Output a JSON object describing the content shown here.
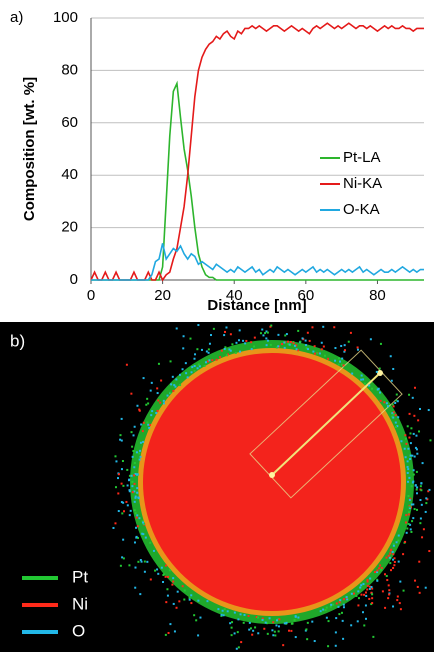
{
  "chart_data": {
    "type": "line",
    "x_label": "Distance [nm]",
    "y_label": "Composition [wt. %]",
    "x": [
      0,
      1,
      2,
      3,
      4,
      5,
      6,
      7,
      8,
      9,
      10,
      11,
      12,
      13,
      14,
      15,
      16,
      17,
      18,
      19,
      20,
      21,
      22,
      23,
      24,
      25,
      26,
      27,
      28,
      29,
      30,
      31,
      32,
      33,
      34,
      35,
      36,
      37,
      38,
      39,
      40,
      41,
      42,
      43,
      44,
      45,
      46,
      47,
      48,
      49,
      50,
      51,
      52,
      53,
      54,
      55,
      56,
      57,
      58,
      59,
      60,
      61,
      62,
      63,
      64,
      65,
      66,
      67,
      68,
      69,
      70,
      71,
      72,
      73,
      74,
      75,
      76,
      77,
      78,
      79,
      80,
      81,
      82,
      83,
      84,
      85,
      86,
      87,
      88,
      89,
      90,
      91,
      92,
      93
    ],
    "series": [
      {
        "name": "Pt-LA",
        "color": "#2db52d",
        "values": [
          0,
          0,
          0,
          0,
          0,
          0,
          0,
          0,
          0,
          0,
          0,
          0,
          0,
          0,
          0,
          0,
          0,
          0,
          0,
          0,
          5,
          30,
          55,
          72,
          75,
          62,
          50,
          42,
          32,
          20,
          10,
          5,
          2,
          1,
          1,
          0,
          0,
          0,
          0,
          0,
          0,
          0,
          0,
          0,
          0,
          0,
          0,
          0,
          0,
          0,
          0,
          0,
          0,
          0,
          0,
          0,
          0,
          0,
          0,
          0,
          0,
          0,
          0,
          0,
          0,
          0,
          0,
          0,
          0,
          0,
          0,
          0,
          0,
          0,
          0,
          0,
          0,
          0,
          0,
          0,
          0,
          0,
          0,
          0,
          0,
          0,
          0,
          0,
          0,
          0,
          0,
          0,
          0,
          0
        ]
      },
      {
        "name": "Ni-KA",
        "color": "#e41a1a",
        "values": [
          0,
          3,
          0,
          0,
          3,
          0,
          0,
          3,
          0,
          0,
          0,
          0,
          3,
          0,
          0,
          0,
          3,
          0,
          0,
          3,
          0,
          2,
          3,
          8,
          12,
          20,
          28,
          40,
          55,
          70,
          80,
          85,
          88,
          90,
          91,
          93,
          92,
          94,
          95,
          93,
          92,
          95,
          94,
          96,
          96,
          97,
          96,
          97,
          96,
          95,
          96,
          97,
          97,
          96,
          95,
          96,
          97,
          96,
          95,
          96,
          95,
          94,
          96,
          97,
          96,
          97,
          98,
          97,
          96,
          97,
          96,
          97,
          98,
          97,
          96,
          97,
          97,
          96,
          97,
          96,
          95,
          96,
          97,
          96,
          97,
          96,
          96,
          97,
          96,
          96,
          95,
          96,
          96,
          96
        ]
      },
      {
        "name": "O-KA",
        "color": "#20a8e0",
        "values": [
          0,
          0,
          0,
          0,
          0,
          0,
          0,
          0,
          0,
          0,
          0,
          0,
          0,
          0,
          0,
          0,
          0,
          2,
          7,
          8,
          14,
          8,
          10,
          12,
          11,
          13,
          10,
          8,
          10,
          9,
          6,
          7,
          6,
          5,
          4,
          6,
          5,
          4,
          3,
          4,
          3,
          5,
          4,
          3,
          4,
          5,
          3,
          4,
          2,
          3,
          4,
          3,
          5,
          4,
          3,
          4,
          3,
          2,
          3,
          4,
          3,
          4,
          5,
          3,
          4,
          3,
          4,
          3,
          2,
          3,
          4,
          3,
          4,
          3,
          4,
          5,
          3,
          4,
          3,
          2,
          3,
          4,
          3,
          3,
          4,
          3,
          4,
          5,
          4,
          3,
          4,
          3,
          4,
          4
        ]
      }
    ],
    "xlim": [
      0,
      93
    ],
    "xticks": [
      0,
      20,
      40,
      60,
      80
    ],
    "ylim": [
      0,
      100
    ],
    "yticks": [
      0,
      20,
      40,
      60,
      80,
      100
    ],
    "grid": true
  },
  "panel_labels": [
    "a)",
    "b)"
  ],
  "map_legend": [
    {
      "name": "Pt",
      "color": "#22c833"
    },
    {
      "name": "Ni",
      "color": "#ff2a1a"
    },
    {
      "name": "O",
      "color": "#22b8e8"
    }
  ]
}
